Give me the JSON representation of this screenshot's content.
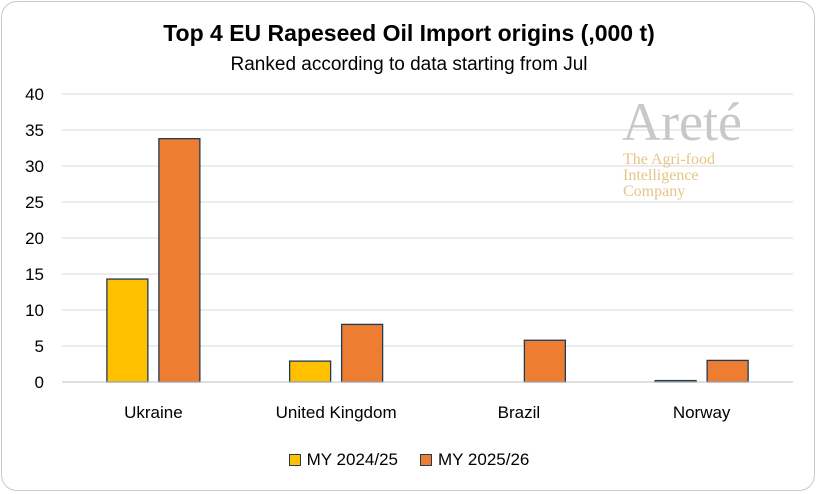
{
  "chart_data": {
    "type": "bar",
    "title": "Top 4 EU Rapeseed Oil Import origins (,000 t)",
    "subtitle": "Ranked according to data starting from Jul",
    "categories": [
      "Ukraine",
      "United Kingdom",
      "Brazil",
      "Norway"
    ],
    "series": [
      {
        "name": "MY 2024/25",
        "values": [
          14.3,
          2.9,
          0,
          0.2
        ],
        "color": "#ffc000"
      },
      {
        "name": "MY 2025/26",
        "values": [
          33.8,
          8.0,
          5.8,
          3.0
        ],
        "color": "#ed7d31"
      }
    ],
    "ylim": [
      0,
      40
    ],
    "yticks": [
      "0",
      "5",
      "10",
      "15",
      "20",
      "25",
      "30",
      "35",
      "40"
    ],
    "grid": true,
    "legend_position": "bottom"
  },
  "watermark": {
    "name": "Areté",
    "tagline": [
      "The Agri-food",
      "Intelligence",
      "Company"
    ]
  }
}
